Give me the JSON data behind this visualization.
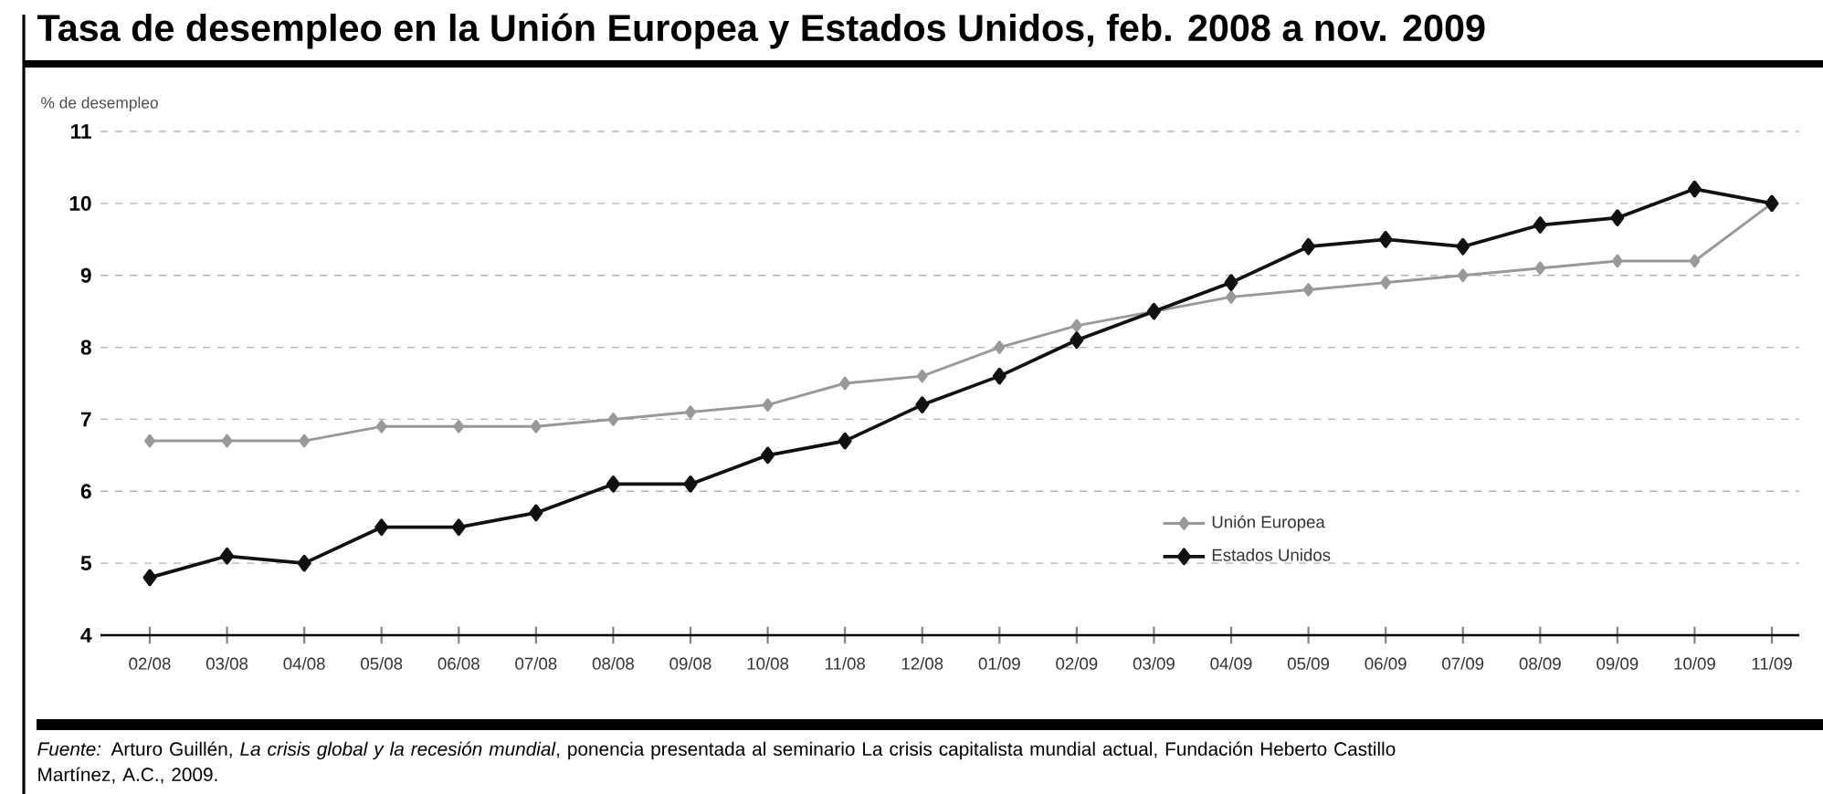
{
  "chart_data": {
    "type": "line",
    "title": "Tasa de desempleo en la Unión Europea y Estados Unidos, feb. 2008 a nov. 2009",
    "ylabel": "% de desempleo",
    "categories": [
      "02/08",
      "03/08",
      "04/08",
      "05/08",
      "06/08",
      "07/08",
      "08/08",
      "09/08",
      "10/08",
      "11/08",
      "12/08",
      "01/09",
      "02/09",
      "03/09",
      "04/09",
      "05/09",
      "06/09",
      "07/09",
      "08/09",
      "09/09",
      "10/09",
      "11/09"
    ],
    "series": [
      {
        "name": "Unión Europea",
        "color": "#999999",
        "values": [
          6.7,
          6.7,
          6.7,
          6.9,
          6.9,
          6.9,
          7.0,
          7.1,
          7.2,
          7.5,
          7.6,
          8.0,
          8.3,
          8.5,
          8.7,
          8.8,
          8.9,
          9.0,
          9.1,
          9.2,
          9.2,
          10.0
        ]
      },
      {
        "name": "Estados Unidos",
        "color": "#111111",
        "values": [
          4.8,
          5.1,
          5.0,
          5.5,
          5.5,
          5.7,
          6.1,
          6.1,
          6.5,
          6.7,
          7.2,
          7.6,
          8.1,
          8.5,
          8.9,
          9.4,
          9.5,
          9.4,
          9.7,
          9.8,
          10.2,
          10.0
        ]
      }
    ],
    "ylim": [
      4,
      11
    ],
    "yticks": [
      4,
      5,
      6,
      7,
      8,
      9,
      10,
      11
    ],
    "grid": "y",
    "legend": "bottom right",
    "marker": "diamond",
    "line_style": "solid",
    "annotations": [
      "*Fuente:* Arturo Guillén, *La crisis global y la recesión mundial*, ponencia presentada al seminario La crisis capitalista mundial actual, Fundación Heberto Castillo Martínez, A.C., 2009."
    ]
  }
}
